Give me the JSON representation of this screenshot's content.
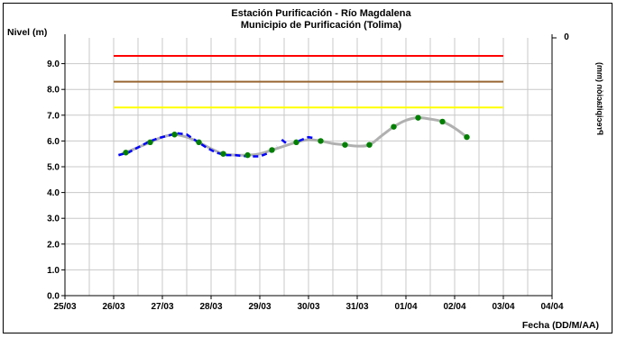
{
  "chart_data": {
    "type": "line",
    "title": "Estación Purificación - Río Magdalena",
    "subtitle": "Municipio de Purificación (Tolima)",
    "ylabel": "Nivel (m)",
    "xlabel": "Fecha (DD/M/AA)",
    "y2label": "Precipitación (mm)",
    "y2_tick": "0",
    "ylim": [
      0,
      10
    ],
    "yticks": [
      "0.0",
      "1.0",
      "2.0",
      "3.0",
      "4.0",
      "5.0",
      "6.0",
      "7.0",
      "8.0",
      "9.0"
    ],
    "xticks": [
      "25/03",
      "26/03",
      "27/03",
      "28/03",
      "29/03",
      "30/03",
      "31/03",
      "01/04",
      "02/04",
      "03/04",
      "04/04"
    ],
    "grid": true,
    "thresholds": [
      {
        "value": 9.3,
        "color": "#ff0000"
      },
      {
        "value": 8.3,
        "color": "#996633"
      },
      {
        "value": 7.3,
        "color": "#ffff00"
      }
    ],
    "series": [
      {
        "style": "points",
        "color": "#008000",
        "x": [
          1.25,
          1.75,
          2.25,
          2.75,
          3.25,
          3.75,
          4.25,
          4.75,
          5.25,
          5.75,
          6.25,
          6.75,
          7.25,
          7.75,
          8.25
        ],
        "values": [
          5.55,
          5.95,
          6.25,
          5.95,
          5.5,
          5.45,
          5.65,
          5.95,
          6.0,
          5.85,
          5.85,
          6.55,
          6.9,
          6.75,
          6.15
        ]
      },
      {
        "style": "smooth-line",
        "color": "#b0b0b0",
        "x": [
          1.1,
          1.25,
          1.5,
          1.75,
          2.0,
          2.25,
          2.5,
          2.75,
          3.0,
          3.25,
          3.5,
          3.75,
          4.0,
          4.25,
          4.5,
          4.75,
          5.0,
          5.25,
          5.5,
          5.75,
          6.0,
          6.25,
          6.5,
          6.75,
          7.0,
          7.25,
          7.5,
          7.75,
          8.0,
          8.25
        ],
        "values": [
          5.45,
          5.55,
          5.75,
          5.95,
          6.15,
          6.25,
          6.15,
          5.95,
          5.7,
          5.5,
          5.45,
          5.45,
          5.5,
          5.65,
          5.8,
          5.95,
          6.05,
          6.0,
          5.9,
          5.85,
          5.8,
          5.85,
          6.2,
          6.55,
          6.8,
          6.9,
          6.85,
          6.75,
          6.5,
          6.15
        ]
      },
      {
        "style": "dashed-line",
        "color": "#0000ff",
        "segments": [
          {
            "x": [
              1.1,
              1.3,
              1.5,
              1.7,
              1.9,
              2.1,
              2.3,
              2.5,
              2.7,
              2.9,
              3.1,
              3.3,
              3.5,
              3.75,
              4.0,
              4.2,
              4.35
            ],
            "values": [
              5.45,
              5.55,
              5.75,
              5.95,
              6.1,
              6.2,
              6.3,
              6.25,
              6.0,
              5.75,
              5.55,
              5.45,
              5.45,
              5.4,
              5.4,
              5.55,
              5.8
            ]
          },
          {
            "x": [
              4.45,
              4.55
            ],
            "values": [
              6.05,
              5.9
            ]
          },
          {
            "x": [
              4.8,
              5.0,
              5.15
            ],
            "values": [
              6.0,
              6.15,
              6.1
            ]
          }
        ]
      }
    ]
  }
}
